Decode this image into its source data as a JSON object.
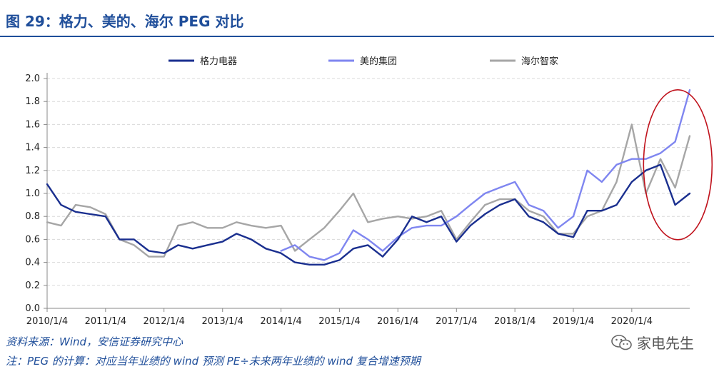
{
  "figure": {
    "title": "图 29：格力、美的、海尔 PEG 对比",
    "source": "资料来源：Wind，安信证券研究中心",
    "note": "注：PEG 的计算：对应当年业绩的 wind 预测 PE÷未来两年业绩的 wind 复合增速预期",
    "watermark": "家电先生"
  },
  "colors": {
    "gree": "#1a2f8f",
    "midea": "#7f86f0",
    "haier": "#a6a6a6",
    "highlight": "#c0121c",
    "title": "#1f4e9a"
  },
  "chart_data": {
    "type": "line",
    "title": "",
    "xlabel": "",
    "ylabel": "",
    "ylim": [
      0,
      2.0
    ],
    "yticks": [
      0.0,
      0.2,
      0.4,
      0.6,
      0.8,
      1.0,
      1.2,
      1.4,
      1.6,
      1.8,
      2.0
    ],
    "ytick_labels": [
      "0.0",
      "0.2",
      "0.4",
      "0.6",
      "0.8",
      "1.0",
      "1.2",
      "1.4",
      "1.6",
      "1.8",
      "2.0"
    ],
    "xlim": [
      "2010-01-04",
      "2020-12-31"
    ],
    "xtick_labels": [
      "2010/1/4",
      "2011/1/4",
      "2012/1/4",
      "2013/1/4",
      "2014/1/4",
      "2015/1/4",
      "2016/1/4",
      "2017/1/4",
      "2018/1/4",
      "2019/1/4",
      "2020/1/4"
    ],
    "grid": "horizontal dashed",
    "legend": "top-center",
    "annotation": "red ellipse highlighting late 2020",
    "x": [
      "2010-01-04",
      "2010-04-01",
      "2010-07-01",
      "2010-10-01",
      "2011-01-04",
      "2011-04-01",
      "2011-07-01",
      "2011-10-01",
      "2012-01-04",
      "2012-04-01",
      "2012-07-01",
      "2012-10-01",
      "2013-01-04",
      "2013-04-01",
      "2013-07-01",
      "2013-10-01",
      "2014-01-04",
      "2014-04-01",
      "2014-07-01",
      "2014-10-01",
      "2015-01-04",
      "2015-04-01",
      "2015-07-01",
      "2015-10-01",
      "2016-01-04",
      "2016-04-01",
      "2016-07-01",
      "2016-10-01",
      "2017-01-04",
      "2017-04-01",
      "2017-07-01",
      "2017-10-01",
      "2018-01-04",
      "2018-04-01",
      "2018-07-01",
      "2018-10-01",
      "2019-01-04",
      "2019-04-01",
      "2019-07-01",
      "2019-10-01",
      "2020-01-04",
      "2020-04-01",
      "2020-07-01",
      "2020-10-01",
      "2020-12-31"
    ],
    "series": [
      {
        "name": "格力电器",
        "values": [
          1.08,
          0.9,
          0.84,
          0.82,
          0.8,
          0.6,
          0.6,
          0.5,
          0.48,
          0.55,
          0.52,
          0.55,
          0.58,
          0.65,
          0.6,
          0.52,
          0.48,
          0.4,
          0.38,
          0.38,
          0.42,
          0.52,
          0.55,
          0.45,
          0.6,
          0.8,
          0.75,
          0.8,
          0.58,
          0.72,
          0.82,
          0.9,
          0.95,
          0.8,
          0.75,
          0.65,
          0.62,
          0.85,
          0.85,
          0.9,
          1.1,
          1.2,
          1.25,
          0.9,
          1.0
        ]
      },
      {
        "name": "美的集团",
        "values": [
          null,
          null,
          null,
          null,
          null,
          null,
          null,
          null,
          null,
          null,
          null,
          null,
          null,
          null,
          null,
          null,
          0.5,
          0.55,
          0.45,
          0.42,
          0.48,
          0.68,
          0.6,
          0.5,
          0.62,
          0.7,
          0.72,
          0.72,
          0.8,
          0.9,
          1.0,
          1.05,
          1.1,
          0.9,
          0.85,
          0.7,
          0.8,
          1.2,
          1.1,
          1.25,
          1.3,
          1.3,
          1.35,
          1.45,
          1.9
        ]
      },
      {
        "name": "海尔智家",
        "values": [
          0.75,
          0.72,
          0.9,
          0.88,
          0.82,
          0.6,
          0.55,
          0.45,
          0.45,
          0.72,
          0.75,
          0.7,
          0.7,
          0.75,
          0.72,
          0.7,
          0.72,
          0.5,
          0.6,
          0.7,
          0.85,
          1.0,
          0.75,
          0.78,
          0.8,
          0.78,
          0.8,
          0.85,
          0.6,
          0.75,
          0.9,
          0.95,
          0.95,
          0.85,
          0.8,
          0.65,
          0.65,
          0.8,
          0.85,
          1.1,
          1.6,
          1.0,
          1.3,
          1.05,
          1.5
        ]
      }
    ]
  }
}
